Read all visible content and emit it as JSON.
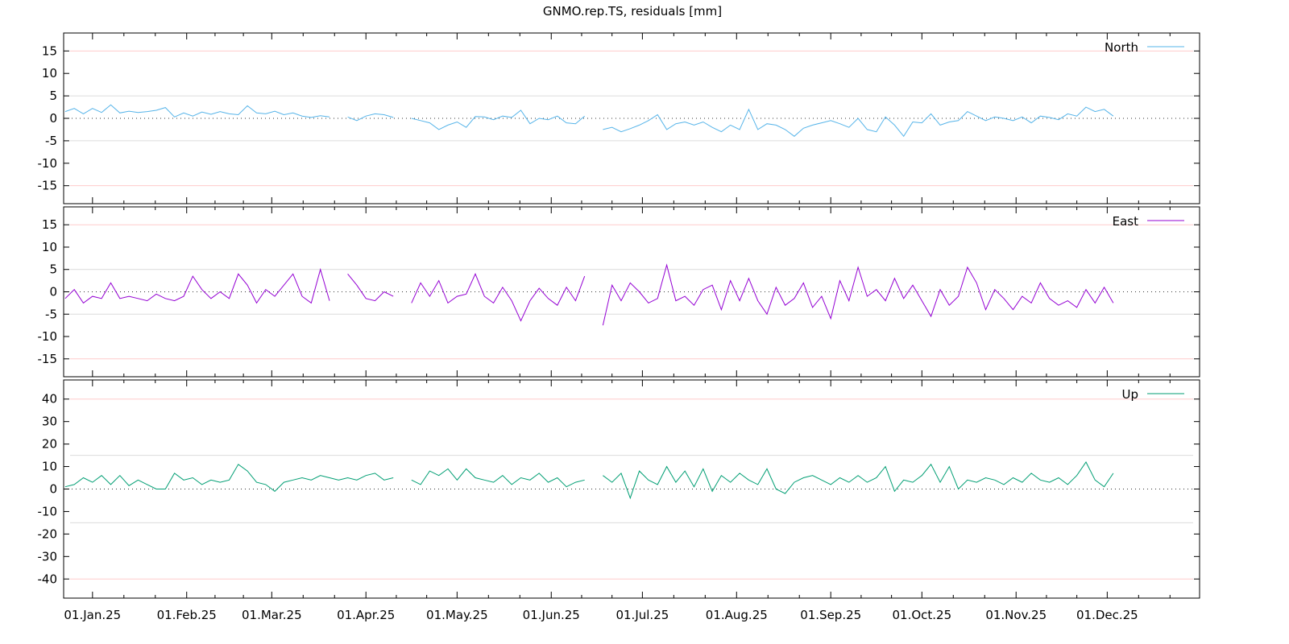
{
  "chart_data": {
    "type": "line",
    "title": "GNMO.rep.TS, residuals [mm]",
    "xlabel": "",
    "ylabel": "",
    "x_axis": {
      "type": "date",
      "range": [
        "2024-12-22",
        "2025-12-31"
      ],
      "tick_labels": [
        "01.Jan.25",
        "01.Feb.25",
        "01.Mar.25",
        "01.Apr.25",
        "01.May.25",
        "01.Jun.25",
        "01.Jul.25",
        "01.Aug.25",
        "01.Sep.25",
        "01.Oct.25",
        "01.Nov.25",
        "01.Dec.25"
      ],
      "tick_dates": [
        "2025-01-01",
        "2025-02-01",
        "2025-03-01",
        "2025-04-01",
        "2025-05-01",
        "2025-06-01",
        "2025-07-01",
        "2025-08-01",
        "2025-09-01",
        "2025-10-01",
        "2025-11-01",
        "2025-12-01"
      ]
    },
    "sampling": {
      "start_day_offset_from_2025-01-01": -9,
      "step_days": 3
    },
    "panels": [
      {
        "name": "North",
        "legend": "North",
        "legend_position": "top-right",
        "color": "#56b4e9",
        "ylim": [
          -19,
          19
        ],
        "yticks": [
          -15,
          -10,
          -5,
          0,
          5,
          10,
          15
        ],
        "grid_gray": [
          -5,
          5
        ],
        "grid_pink": [
          -15,
          15
        ],
        "values": [
          1.5,
          2.2,
          1.0,
          2.2,
          1.3,
          3.0,
          1.2,
          1.6,
          1.3,
          1.5,
          1.8,
          2.4,
          0.3,
          1.2,
          0.5,
          1.4,
          0.9,
          1.5,
          1.0,
          0.8,
          2.8,
          1.2,
          1.0,
          1.6,
          0.8,
          1.2,
          0.5,
          0.2,
          0.6,
          0.3,
          null,
          0.3,
          -0.5,
          0.5,
          1.0,
          0.8,
          0.2,
          null,
          0.0,
          -0.5,
          -1.0,
          -2.5,
          -1.5,
          -0.8,
          -2.0,
          0.4,
          0.3,
          -0.3,
          0.5,
          0.2,
          1.8,
          -1.2,
          0.0,
          -0.3,
          0.5,
          -1.0,
          -1.2,
          0.5,
          null,
          -2.5,
          -2.0,
          -3.0,
          -2.3,
          -1.5,
          -0.5,
          0.8,
          -2.5,
          -1.2,
          -0.8,
          -1.5,
          -0.8,
          -2.0,
          -3.0,
          -1.5,
          -2.5,
          2.0,
          -2.5,
          -1.2,
          -1.5,
          -2.5,
          -4.0,
          -2.2,
          -1.5,
          -1.0,
          -0.5,
          -1.2,
          -2.0,
          0.0,
          -2.5,
          -3.0,
          0.3,
          -1.5,
          -4.0,
          -0.8,
          -1.0,
          1.0,
          -1.5,
          -0.8,
          -0.5,
          1.5,
          0.5,
          -0.5,
          0.3,
          0.0,
          -0.5,
          0.3,
          -1.0,
          0.5,
          0.2,
          -0.3,
          1.0,
          0.5,
          2.5,
          1.5,
          2.0,
          0.5
        ]
      },
      {
        "name": "East",
        "legend": "East",
        "legend_position": "top-right",
        "color": "#9400d3",
        "ylim": [
          -19,
          19
        ],
        "yticks": [
          -15,
          -10,
          -5,
          0,
          5,
          10,
          15
        ],
        "grid_gray": [
          -5,
          5
        ],
        "grid_pink": [
          -15,
          15
        ],
        "values": [
          -1.5,
          0.5,
          -2.5,
          -1.0,
          -1.5,
          2.0,
          -1.5,
          -1.0,
          -1.5,
          -2.0,
          -0.5,
          -1.5,
          -2.0,
          -1.0,
          3.5,
          0.5,
          -1.5,
          0.0,
          -1.5,
          4.0,
          1.5,
          -2.5,
          0.5,
          -1.0,
          1.5,
          4.0,
          -1.0,
          -2.5,
          5.0,
          -2.0,
          null,
          4.0,
          1.5,
          -1.5,
          -2.0,
          0.0,
          -1.0,
          null,
          -2.5,
          2.0,
          -1.0,
          2.5,
          -2.5,
          -1.0,
          -0.5,
          4.0,
          -1.0,
          -2.5,
          1.0,
          -2.0,
          -6.5,
          -2.0,
          0.8,
          -1.5,
          -3.0,
          1.0,
          -2.0,
          3.5,
          null,
          -7.5,
          1.5,
          -2.0,
          2.0,
          0.0,
          -2.5,
          -1.5,
          6.0,
          -2.0,
          -1.0,
          -3.0,
          0.5,
          1.5,
          -4.0,
          2.5,
          -2.0,
          3.0,
          -2.0,
          -5.0,
          1.0,
          -3.0,
          -1.5,
          2.0,
          -3.5,
          -1.0,
          -6.0,
          2.5,
          -2.0,
          5.5,
          -1.0,
          0.5,
          -2.0,
          3.0,
          -1.5,
          1.5,
          -2.0,
          -5.5,
          0.5,
          -3.0,
          -1.0,
          5.5,
          2.0,
          -4.0,
          0.5,
          -1.5,
          -4.0,
          -1.0,
          -2.5,
          2.0,
          -1.5,
          -3.0,
          -2.0,
          -3.5,
          0.5,
          -2.5,
          1.0,
          -2.5
        ]
      },
      {
        "name": "Up",
        "legend": "Up",
        "legend_position": "top-right",
        "color": "#009e73",
        "ylim": [
          -48.5,
          48.5
        ],
        "yticks": [
          -40,
          -30,
          -20,
          -10,
          0,
          10,
          20,
          30,
          40
        ],
        "grid_gray": [
          -15,
          15
        ],
        "grid_pink": [
          -40,
          40
        ],
        "values": [
          1,
          2,
          5,
          3,
          6,
          2,
          6,
          1.5,
          4,
          2,
          0,
          0,
          7,
          4,
          5,
          2,
          4,
          3,
          4,
          11,
          8,
          3,
          2,
          -1,
          3,
          4,
          5,
          4,
          6,
          5,
          4,
          5,
          4,
          6,
          7,
          4,
          5,
          null,
          4,
          2,
          8,
          6,
          9,
          4,
          9,
          5,
          4,
          3,
          6,
          2,
          5,
          4,
          7,
          3,
          5,
          1,
          3,
          4,
          null,
          6,
          3,
          7,
          -4,
          8,
          4,
          2,
          10,
          3,
          8,
          1,
          9,
          -1,
          6,
          3,
          7,
          4,
          2,
          9,
          0,
          -2,
          3,
          5,
          6,
          4,
          2,
          5,
          3,
          6,
          3,
          5,
          10,
          -1,
          4,
          3,
          6,
          11,
          3,
          10,
          0,
          4,
          3,
          5,
          4,
          2,
          5,
          3,
          7,
          4,
          3,
          5,
          2,
          6,
          12,
          4,
          1,
          7
        ]
      }
    ]
  }
}
